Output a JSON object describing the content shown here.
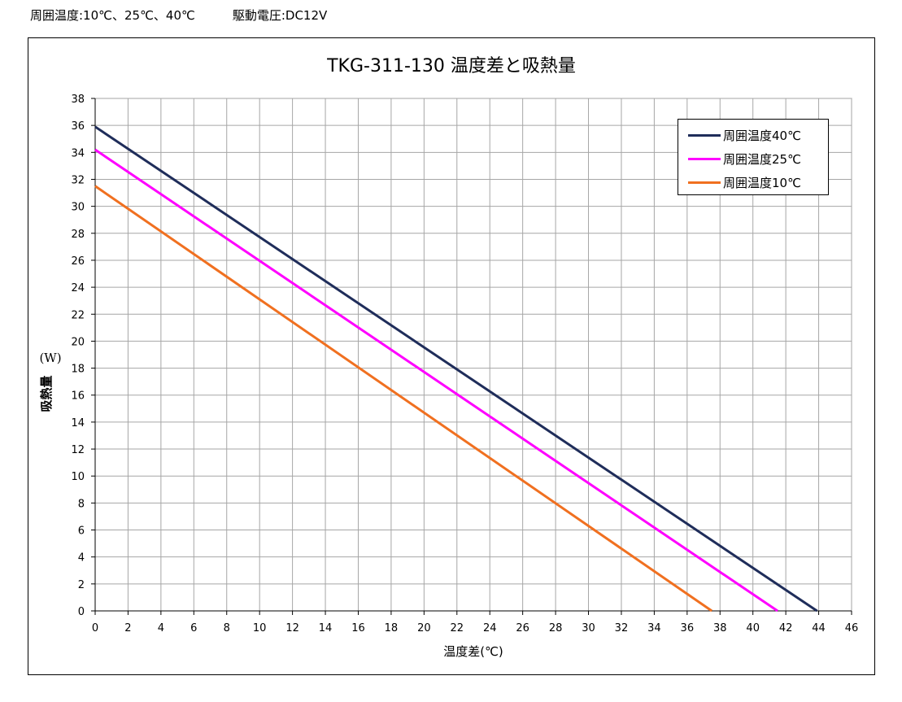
{
  "header": {
    "ambient": "周囲温度:10℃、25℃、40℃",
    "voltage": "駆動電圧:DC12V"
  },
  "chart_data": {
    "type": "line",
    "title": "TKG-311-130  温度差と吸熱量",
    "xlabel": "温度差(℃)",
    "ylabel": "吸熱量",
    "yunit": "(W)",
    "xlim": [
      0,
      46
    ],
    "ylim": [
      0,
      38
    ],
    "xticks": [
      0,
      2,
      4,
      6,
      8,
      10,
      12,
      14,
      16,
      18,
      20,
      22,
      24,
      26,
      28,
      30,
      32,
      34,
      36,
      38,
      40,
      42,
      44,
      46
    ],
    "yticks": [
      0,
      2,
      4,
      6,
      8,
      10,
      12,
      14,
      16,
      18,
      20,
      22,
      24,
      26,
      28,
      30,
      32,
      34,
      36,
      38
    ],
    "grid": true,
    "legend_position": "top-right",
    "series": [
      {
        "name": "周囲温度40℃",
        "color": "#1f2d5a",
        "x": [
          0,
          43.9
        ],
        "y": [
          35.9,
          0
        ]
      },
      {
        "name": "周囲温度25℃",
        "color": "#ff00ff",
        "x": [
          0,
          41.5
        ],
        "y": [
          34.2,
          0
        ]
      },
      {
        "name": "周囲温度10℃",
        "color": "#f07020",
        "x": [
          0,
          37.5
        ],
        "y": [
          31.5,
          0
        ]
      }
    ]
  }
}
